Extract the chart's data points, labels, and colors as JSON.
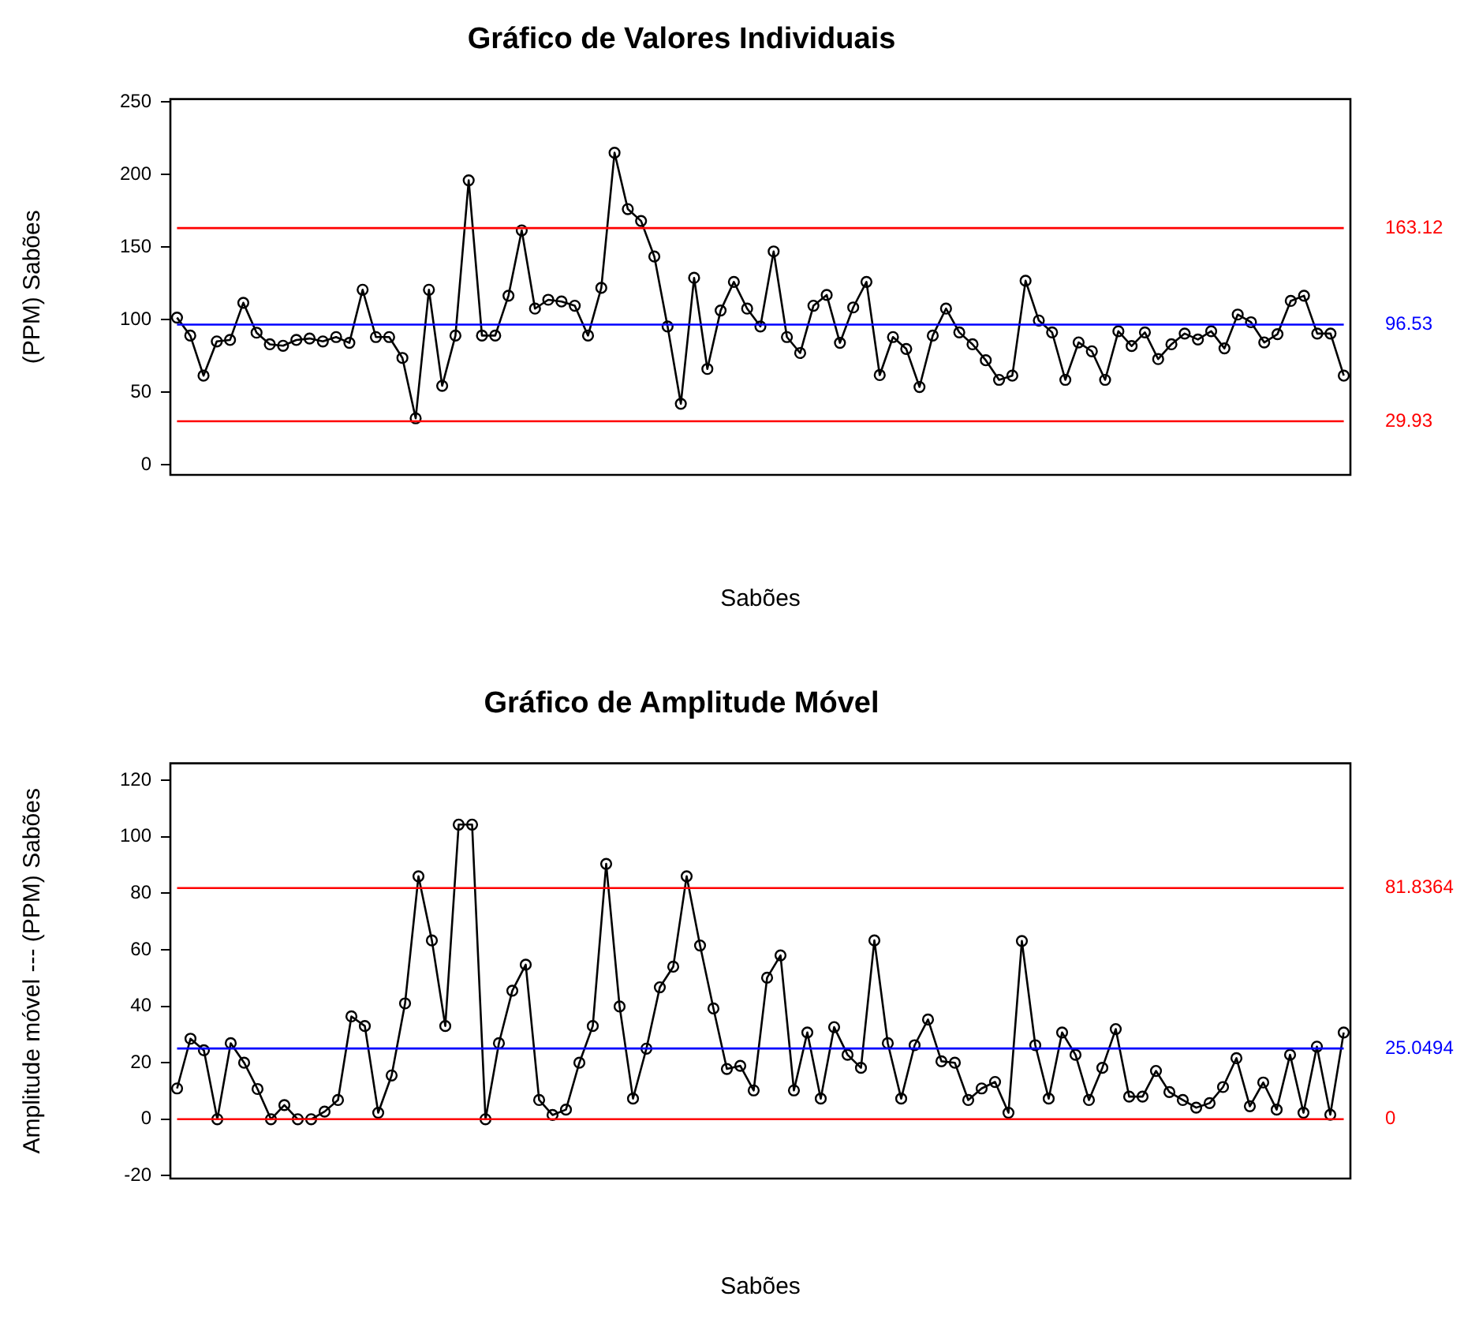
{
  "chart_data": [
    {
      "type": "line",
      "title": "Gráfico de Valores Individuais",
      "xlabel": "Sabões",
      "ylabel": "(PPM) Sabões",
      "categories": [
        null,
        null,
        null,
        null,
        null,
        null,
        null,
        null,
        null,
        null,
        null,
        null,
        null,
        null,
        null,
        null,
        null,
        null,
        null,
        null,
        null,
        null,
        null,
        null,
        null,
        null,
        null,
        null,
        null,
        null,
        null,
        null,
        null,
        null,
        null,
        null,
        null,
        null,
        null,
        null,
        null,
        null,
        null,
        null,
        null,
        null,
        null,
        null,
        null,
        null,
        null,
        null,
        null,
        null,
        null,
        null,
        null,
        null,
        null,
        null,
        null,
        null,
        null,
        null,
        null,
        null,
        null,
        null,
        null,
        null,
        null,
        null,
        null,
        null,
        null,
        null,
        null,
        null,
        null,
        null,
        null,
        null,
        null,
        null,
        null,
        null,
        null,
        null,
        null
      ],
      "series": [
        {
          "color": "#000000",
          "values": [
            101.4,
            89,
            61.4,
            85,
            86,
            111.6,
            91,
            83,
            82,
            86,
            87,
            85,
            88,
            84,
            120.6,
            88,
            88,
            73.6,
            32,
            120.6,
            54.4,
            89,
            196,
            89,
            89,
            116.5,
            161.5,
            107.6,
            113.7,
            112.5,
            109.6,
            89,
            121.9,
            215,
            176.2,
            168,
            143.5,
            95.3,
            42,
            128.8,
            66,
            106.3,
            126,
            107.6,
            95.3,
            147,
            88,
            77,
            109.6,
            117,
            84,
            108.4,
            126,
            61.8,
            88,
            79.8,
            53.6,
            89,
            107.6,
            91.2,
            83,
            72,
            58.5,
            61.4,
            126.8,
            99.4,
            91.2,
            58.5,
            84.3,
            78.2,
            58.5,
            92,
            81.8,
            91.2,
            72.8,
            83,
            90.4,
            86.3,
            92,
            80.2,
            103.5,
            98.2,
            84.3,
            90,
            112.9,
            116.5,
            90.4,
            90.4,
            61.4
          ]
        }
      ],
      "ylim": [
        -7,
        252
      ],
      "yticks": [
        0,
        50,
        100,
        150,
        200,
        250
      ],
      "grid": false,
      "legend": false,
      "tick_labels": "y",
      "marker": "circle",
      "line_style": "solid",
      "ref_lines": [
        {
          "axis": "y",
          "value": 163.12,
          "label": "163.12",
          "color": "#ff0000"
        },
        {
          "axis": "y",
          "value": 96.53,
          "label": "96.53",
          "color": "#0000ff"
        },
        {
          "axis": "y",
          "value": 29.93,
          "label": "29.93",
          "color": "#ff0000"
        }
      ]
    },
    {
      "type": "line",
      "title": "Gráfico de Amplitude Móvel",
      "xlabel": "Sabões",
      "ylabel": "Amplitude móvel --- (PPM) Sabões",
      "categories": [
        null,
        null,
        null,
        null,
        null,
        null,
        null,
        null,
        null,
        null,
        null,
        null,
        null,
        null,
        null,
        null,
        null,
        null,
        null,
        null,
        null,
        null,
        null,
        null,
        null,
        null,
        null,
        null,
        null,
        null,
        null,
        null,
        null,
        null,
        null,
        null,
        null,
        null,
        null,
        null,
        null,
        null,
        null,
        null,
        null,
        null,
        null,
        null,
        null,
        null,
        null,
        null,
        null,
        null,
        null,
        null,
        null,
        null,
        null,
        null,
        null,
        null,
        null,
        null,
        null,
        null,
        null,
        null,
        null,
        null,
        null,
        null,
        null,
        null,
        null,
        null,
        null,
        null,
        null,
        null,
        null,
        null,
        null,
        null,
        null,
        null,
        null,
        null
      ],
      "series": [
        {
          "color": "#000000",
          "values": [
            10.9,
            28.5,
            24.4,
            0,
            26.9,
            20,
            10.7,
            0,
            5,
            0,
            0,
            2.7,
            6.8,
            36.4,
            33,
            2.3,
            15.5,
            41,
            86,
            63.3,
            33,
            104.3,
            104.3,
            0,
            26.9,
            45.5,
            54.7,
            6.8,
            1.5,
            3.4,
            20,
            33,
            90.4,
            39.9,
            7.3,
            25,
            46.7,
            54,
            86,
            61.5,
            39.2,
            17.8,
            18.9,
            10.2,
            50.1,
            58,
            10.2,
            30.7,
            7.3,
            32.6,
            22.8,
            18.2,
            63.3,
            26.9,
            7.3,
            26.2,
            35.3,
            20.5,
            20,
            6.8,
            10.9,
            13.2,
            2.3,
            63.1,
            26.2,
            7.3,
            30.7,
            22.8,
            6.8,
            18.2,
            31.9,
            8,
            8,
            17.1,
            9.6,
            6.8,
            4.1,
            5.7,
            11.4,
            21.6,
            4.6,
            13,
            3.4,
            22.8,
            2.3,
            25.7,
            1.6,
            30.7
          ]
        }
      ],
      "ylim": [
        -21,
        126
      ],
      "yticks": [
        -20,
        0,
        20,
        40,
        60,
        80,
        100,
        120
      ],
      "grid": false,
      "legend": false,
      "tick_labels": "y",
      "marker": "circle",
      "line_style": "solid",
      "ref_lines": [
        {
          "axis": "y",
          "value": 81.8364,
          "label": "81.8364",
          "color": "#ff0000"
        },
        {
          "axis": "y",
          "value": 25.0494,
          "label": "25.0494",
          "color": "#0000ff"
        },
        {
          "axis": "y",
          "value": 0,
          "label": "0",
          "color": "#ff0000"
        }
      ]
    }
  ]
}
